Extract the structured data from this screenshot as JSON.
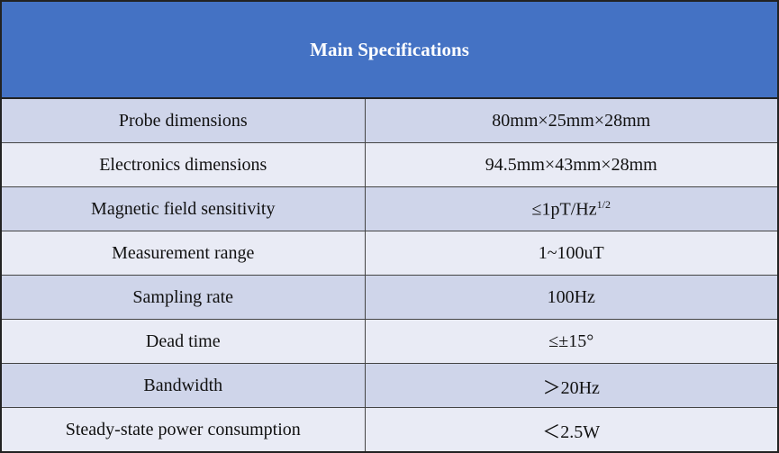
{
  "table": {
    "title": "Main Specifications",
    "rows": [
      [
        "Probe dimensions",
        "80mm×25mm×28mm"
      ],
      [
        "Electronics dimensions",
        "94.5mm×43mm×28mm"
      ],
      [
        "Magnetic field sensitivity",
        {
          "text": "≤1pT/Hz",
          "sup": "1/2"
        }
      ],
      [
        "Measurement range",
        "1~100uT"
      ],
      [
        "Sampling rate",
        "100Hz"
      ],
      [
        "Dead time",
        "≤±15°"
      ],
      [
        "Bandwidth",
        "＞20Hz"
      ],
      [
        "Steady-state power consumption",
        "＜2.5W"
      ]
    ]
  }
}
